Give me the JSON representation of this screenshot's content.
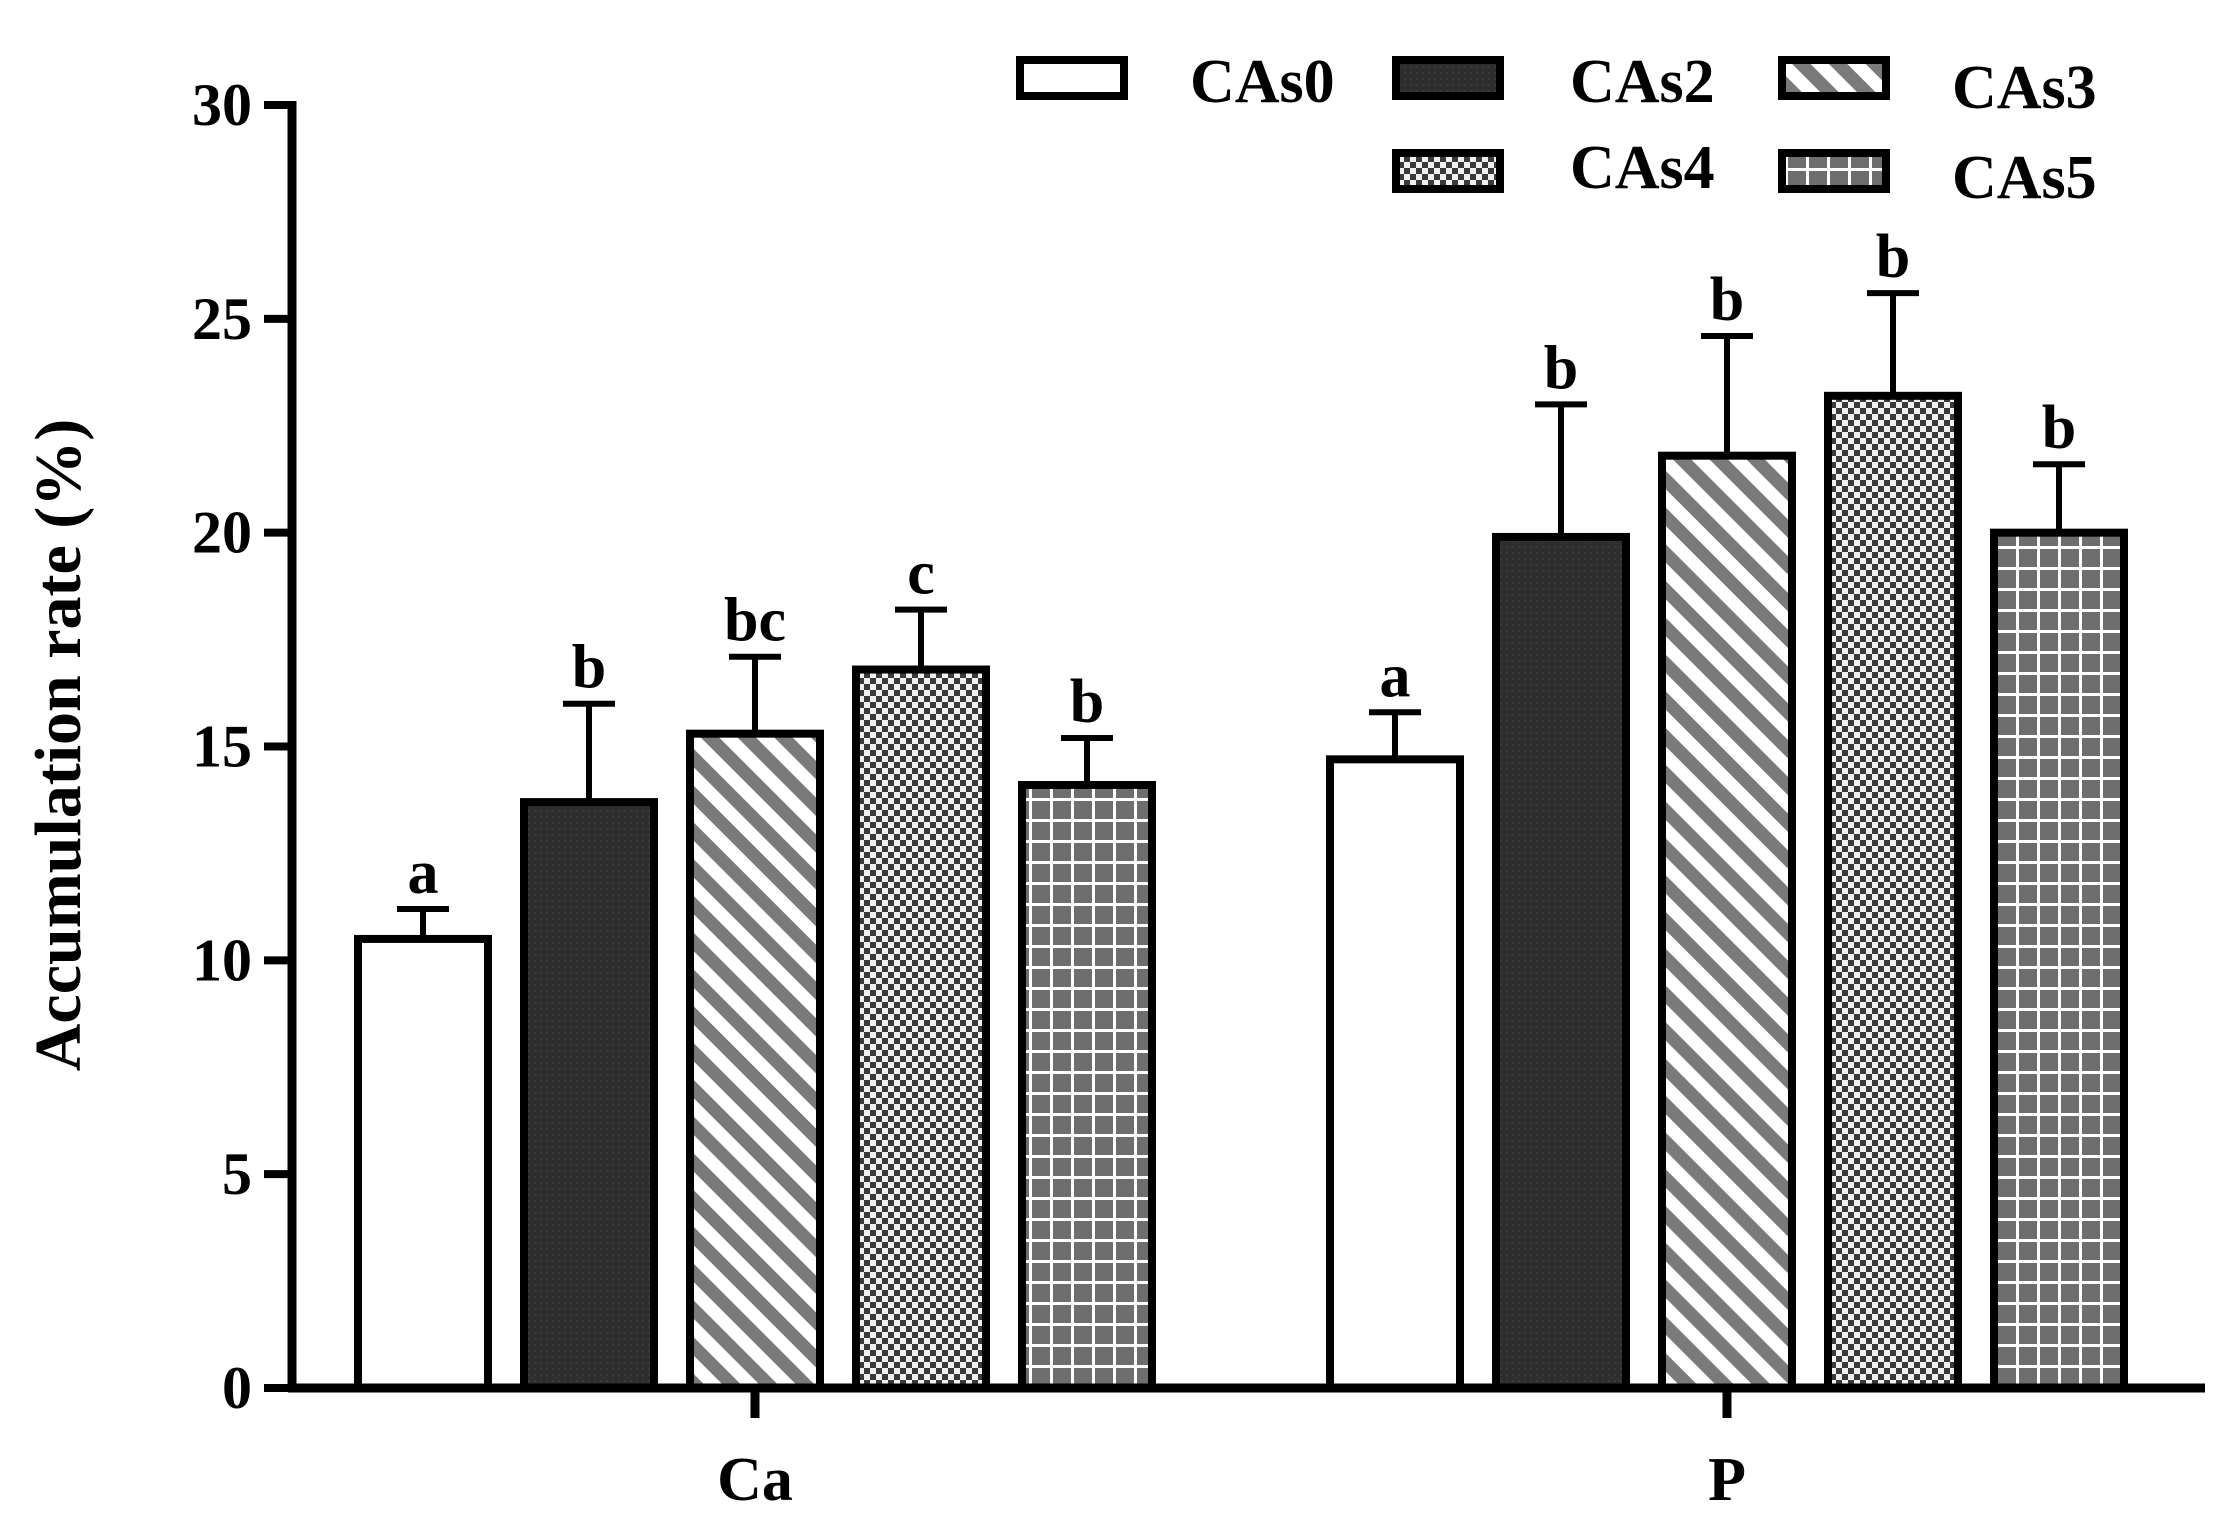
{
  "chart_data": {
    "type": "bar",
    "title": "",
    "xlabel": "",
    "ylabel": "Accumulation rate (%)",
    "ylim": [
      0,
      30
    ],
    "yticks": [
      0,
      5,
      10,
      15,
      20,
      25,
      30
    ],
    "categories": [
      "Ca",
      "P"
    ],
    "series": [
      {
        "name": "CAs0",
        "pattern": "white",
        "values": [
          10.5,
          14.7
        ],
        "errors": [
          0.7,
          1.1
        ],
        "sig": [
          "a",
          "a"
        ]
      },
      {
        "name": "CAs2",
        "pattern": "dark",
        "values": [
          13.7,
          19.9
        ],
        "errors": [
          2.3,
          3.1
        ],
        "sig": [
          "b",
          "b"
        ]
      },
      {
        "name": "CAs3",
        "pattern": "diagonal",
        "values": [
          15.3,
          21.8
        ],
        "errors": [
          1.8,
          2.8
        ],
        "sig": [
          "bc",
          "b"
        ]
      },
      {
        "name": "CAs4",
        "pattern": "checker",
        "values": [
          16.8,
          23.2
        ],
        "errors": [
          1.4,
          2.4
        ],
        "sig": [
          "c",
          "b"
        ]
      },
      {
        "name": "CAs5",
        "pattern": "grid",
        "values": [
          14.1,
          20.0
        ],
        "errors": [
          1.1,
          1.6
        ],
        "sig": [
          "b",
          "b"
        ]
      }
    ],
    "legend_position": "top-right",
    "grid": false,
    "colors": {
      "dark": "#2e2e2e",
      "gray": "#7a7a7a",
      "light": "#ffffff",
      "stroke": "#000000"
    }
  }
}
